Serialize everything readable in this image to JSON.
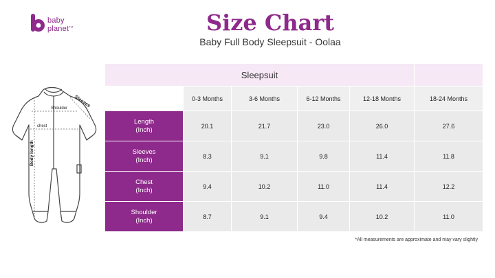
{
  "brand": {
    "line1": "baby",
    "line2": "planet",
    "tm": "TM",
    "color": "#8e2a8b"
  },
  "title": "Size Chart",
  "subtitle": "Baby Full Body Sleepsuit - Oolaa",
  "illustration": {
    "shoulder": "Shoulder",
    "sleeves": "Sleeves",
    "chest": "chest",
    "body_length": "Body length"
  },
  "chart_data": {
    "type": "table",
    "product": "Sleepsuit",
    "columns": [
      "0-3 Months",
      "3-6 Months",
      "6-12 Months",
      "12-18 Months",
      "18-24 Months"
    ],
    "rows": [
      {
        "line1": "Length",
        "line2": "(Inch)",
        "values": [
          "20.1",
          "21.7",
          "23.0",
          "26.0",
          "27.6"
        ]
      },
      {
        "line1": "Sleeves",
        "line2": "(Inch)",
        "values": [
          "8.3",
          "9.1",
          "9.8",
          "11.4",
          "11.8"
        ]
      },
      {
        "line1": "Chest",
        "line2": "(Inch)",
        "values": [
          "9.4",
          "10.2",
          "11.0",
          "11.4",
          "12.2"
        ]
      },
      {
        "line1": "Shoulder",
        "line2": "(Inch)",
        "values": [
          "8.7",
          "9.1",
          "9.4",
          "10.2",
          "11.0"
        ]
      }
    ]
  },
  "note": "*All measurements are approximate and may vary slightly"
}
